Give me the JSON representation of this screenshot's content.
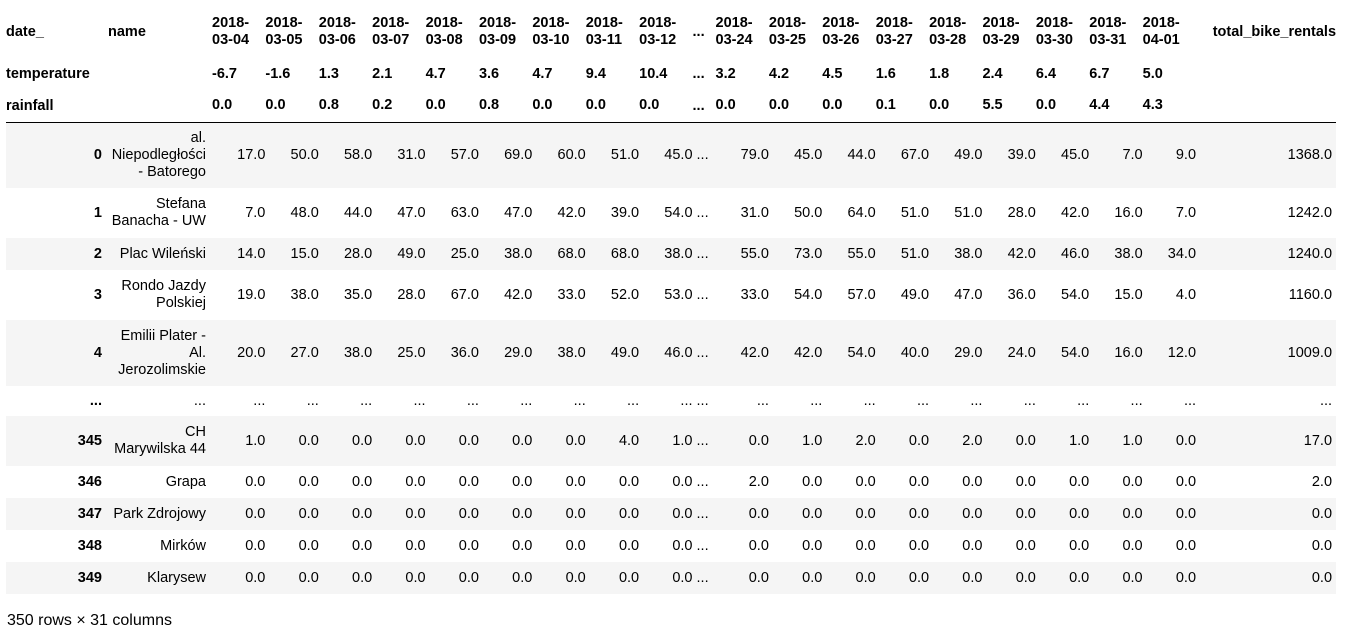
{
  "table": {
    "header_date_label": "date_",
    "header_name_label": "name",
    "header_temp_label": "temperature",
    "header_rain_label": "rainfall",
    "total_label": "total_bike_rentals",
    "ellipsis": "...",
    "columns": [
      {
        "date_top": "2018-",
        "date_bottom": "03-04",
        "temp": "-6.7",
        "rain": "0.0"
      },
      {
        "date_top": "2018-",
        "date_bottom": "03-05",
        "temp": "-1.6",
        "rain": "0.0"
      },
      {
        "date_top": "2018-",
        "date_bottom": "03-06",
        "temp": "1.3",
        "rain": "0.8"
      },
      {
        "date_top": "2018-",
        "date_bottom": "03-07",
        "temp": "2.1",
        "rain": "0.2"
      },
      {
        "date_top": "2018-",
        "date_bottom": "03-08",
        "temp": "4.7",
        "rain": "0.0"
      },
      {
        "date_top": "2018-",
        "date_bottom": "03-09",
        "temp": "3.6",
        "rain": "0.8"
      },
      {
        "date_top": "2018-",
        "date_bottom": "03-10",
        "temp": "4.7",
        "rain": "0.0"
      },
      {
        "date_top": "2018-",
        "date_bottom": "03-11",
        "temp": "9.4",
        "rain": "0.0"
      },
      {
        "date_top": "2018-",
        "date_bottom": "03-12",
        "temp": "10.4",
        "rain": "0.0"
      },
      {
        "ellipsis": true,
        "date_top": "...",
        "date_bottom": "",
        "temp": "...",
        "rain": "..."
      },
      {
        "date_top": "2018-",
        "date_bottom": "03-24",
        "temp": "3.2",
        "rain": "0.0"
      },
      {
        "date_top": "2018-",
        "date_bottom": "03-25",
        "temp": "4.2",
        "rain": "0.0"
      },
      {
        "date_top": "2018-",
        "date_bottom": "03-26",
        "temp": "4.5",
        "rain": "0.0"
      },
      {
        "date_top": "2018-",
        "date_bottom": "03-27",
        "temp": "1.6",
        "rain": "0.1"
      },
      {
        "date_top": "2018-",
        "date_bottom": "03-28",
        "temp": "1.8",
        "rain": "0.0"
      },
      {
        "date_top": "2018-",
        "date_bottom": "03-29",
        "temp": "2.4",
        "rain": "5.5"
      },
      {
        "date_top": "2018-",
        "date_bottom": "03-30",
        "temp": "6.4",
        "rain": "0.0"
      },
      {
        "date_top": "2018-",
        "date_bottom": "03-31",
        "temp": "6.7",
        "rain": "4.4"
      },
      {
        "date_top": "2018-",
        "date_bottom": "04-01",
        "temp": "5.0",
        "rain": "4.3"
      }
    ],
    "rows": [
      {
        "index": "0",
        "name_lines": [
          "al.",
          "Niepodległości",
          "- Batorego"
        ],
        "values": [
          "17.0",
          "50.0",
          "58.0",
          "31.0",
          "57.0",
          "69.0",
          "60.0",
          "51.0",
          "45.0",
          "...",
          "79.0",
          "45.0",
          "44.0",
          "67.0",
          "49.0",
          "39.0",
          "45.0",
          "7.0",
          "9.0"
        ],
        "total": "1368.0"
      },
      {
        "index": "1",
        "name_lines": [
          "Stefana",
          "Banacha - UW"
        ],
        "values": [
          "7.0",
          "48.0",
          "44.0",
          "47.0",
          "63.0",
          "47.0",
          "42.0",
          "39.0",
          "54.0",
          "...",
          "31.0",
          "50.0",
          "64.0",
          "51.0",
          "51.0",
          "28.0",
          "42.0",
          "16.0",
          "7.0"
        ],
        "total": "1242.0"
      },
      {
        "index": "2",
        "name_lines": [
          "Plac Wileński"
        ],
        "values": [
          "14.0",
          "15.0",
          "28.0",
          "49.0",
          "25.0",
          "38.0",
          "68.0",
          "68.0",
          "38.0",
          "...",
          "55.0",
          "73.0",
          "55.0",
          "51.0",
          "38.0",
          "42.0",
          "46.0",
          "38.0",
          "34.0"
        ],
        "total": "1240.0"
      },
      {
        "index": "3",
        "name_lines": [
          "Rondo Jazdy",
          "Polskiej"
        ],
        "values": [
          "19.0",
          "38.0",
          "35.0",
          "28.0",
          "67.0",
          "42.0",
          "33.0",
          "52.0",
          "53.0",
          "...",
          "33.0",
          "54.0",
          "57.0",
          "49.0",
          "47.0",
          "36.0",
          "54.0",
          "15.0",
          "4.0"
        ],
        "total": "1160.0"
      },
      {
        "index": "4",
        "name_lines": [
          "Emilii Plater -",
          "Al.",
          "Jerozolimskie"
        ],
        "values": [
          "20.0",
          "27.0",
          "38.0",
          "25.0",
          "36.0",
          "29.0",
          "38.0",
          "49.0",
          "46.0",
          "...",
          "42.0",
          "42.0",
          "54.0",
          "40.0",
          "29.0",
          "24.0",
          "54.0",
          "16.0",
          "12.0"
        ],
        "total": "1009.0"
      },
      {
        "gap": true,
        "index": "...",
        "name_lines": [
          "..."
        ],
        "values": [
          "...",
          "...",
          "...",
          "...",
          "...",
          "...",
          "...",
          "...",
          "...",
          "...",
          "...",
          "...",
          "...",
          "...",
          "...",
          "...",
          "...",
          "...",
          "..."
        ],
        "total": "..."
      },
      {
        "index": "345",
        "name_lines": [
          "CH",
          "Marywilska 44"
        ],
        "values": [
          "1.0",
          "0.0",
          "0.0",
          "0.0",
          "0.0",
          "0.0",
          "0.0",
          "4.0",
          "1.0",
          "...",
          "0.0",
          "1.0",
          "2.0",
          "0.0",
          "2.0",
          "0.0",
          "1.0",
          "1.0",
          "0.0"
        ],
        "total": "17.0"
      },
      {
        "index": "346",
        "name_lines": [
          "Grapa"
        ],
        "values": [
          "0.0",
          "0.0",
          "0.0",
          "0.0",
          "0.0",
          "0.0",
          "0.0",
          "0.0",
          "0.0",
          "...",
          "2.0",
          "0.0",
          "0.0",
          "0.0",
          "0.0",
          "0.0",
          "0.0",
          "0.0",
          "0.0"
        ],
        "total": "2.0"
      },
      {
        "index": "347",
        "name_lines": [
          "Park Zdrojowy"
        ],
        "values": [
          "0.0",
          "0.0",
          "0.0",
          "0.0",
          "0.0",
          "0.0",
          "0.0",
          "0.0",
          "0.0",
          "...",
          "0.0",
          "0.0",
          "0.0",
          "0.0",
          "0.0",
          "0.0",
          "0.0",
          "0.0",
          "0.0"
        ],
        "total": "0.0"
      },
      {
        "index": "348",
        "name_lines": [
          "Mirków"
        ],
        "values": [
          "0.0",
          "0.0",
          "0.0",
          "0.0",
          "0.0",
          "0.0",
          "0.0",
          "0.0",
          "0.0",
          "...",
          "0.0",
          "0.0",
          "0.0",
          "0.0",
          "0.0",
          "0.0",
          "0.0",
          "0.0",
          "0.0"
        ],
        "total": "0.0"
      },
      {
        "index": "349",
        "name_lines": [
          "Klarysew"
        ],
        "values": [
          "0.0",
          "0.0",
          "0.0",
          "0.0",
          "0.0",
          "0.0",
          "0.0",
          "0.0",
          "0.0",
          "...",
          "0.0",
          "0.0",
          "0.0",
          "0.0",
          "0.0",
          "0.0",
          "0.0",
          "0.0",
          "0.0"
        ],
        "total": "0.0"
      }
    ]
  },
  "footer": {
    "summary": "350 rows × 31 columns"
  }
}
